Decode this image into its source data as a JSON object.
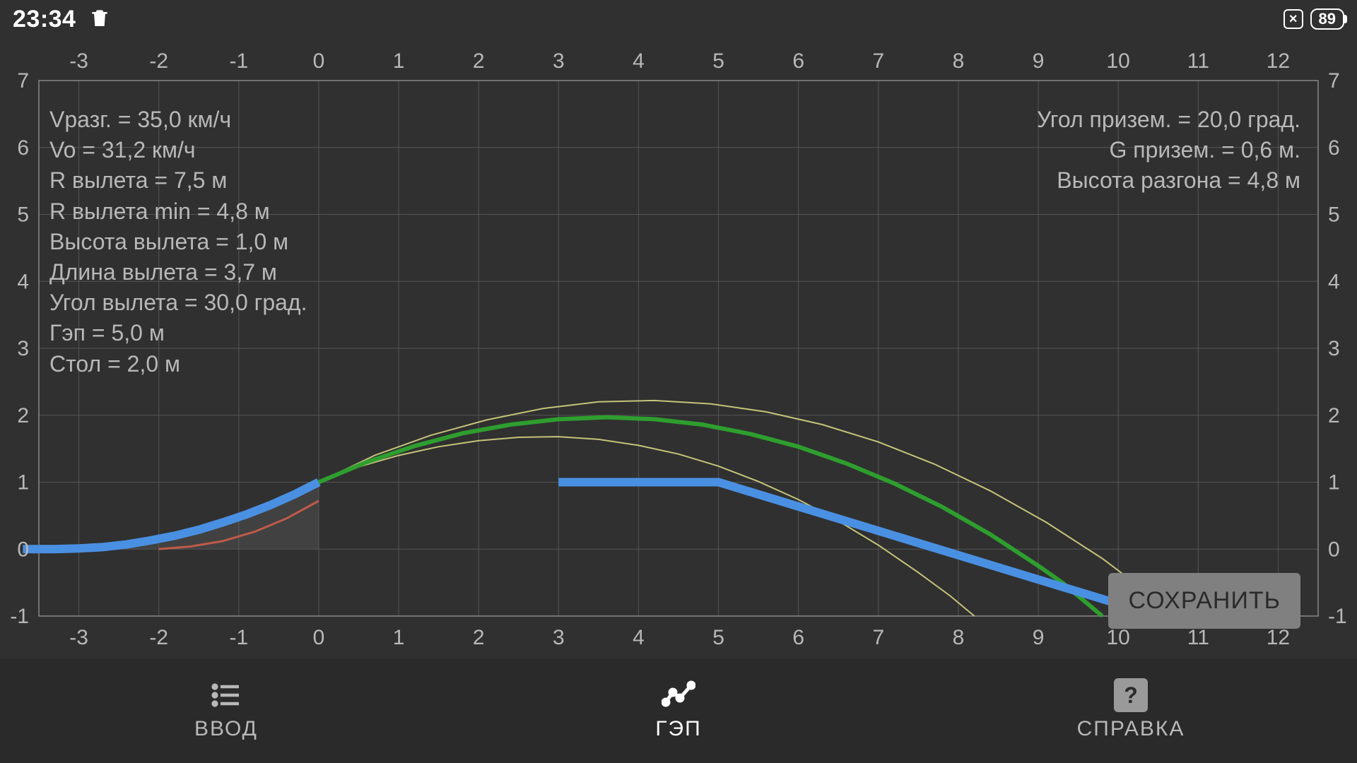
{
  "status": {
    "time": "23:34",
    "battery": "89",
    "close_glyph": "×"
  },
  "chart": {
    "type": "line",
    "background": "#303030",
    "grid_color": "#555555",
    "tick_color": "#b8b8b8",
    "tick_fontsize": 30,
    "x_ticks": [
      -3,
      -2,
      -1,
      0,
      1,
      2,
      3,
      4,
      5,
      6,
      7,
      8,
      9,
      10,
      11,
      12
    ],
    "y_ticks": [
      -1,
      0,
      1,
      2,
      3,
      4,
      5,
      6,
      7
    ],
    "xlim": [
      -3.5,
      12.5
    ],
    "ylim": [
      -1,
      7
    ],
    "colors": {
      "blue": "#4a90e2",
      "green": "#2e9e2e",
      "yellow": "#c4c47a",
      "red": "#c05a4a",
      "ramp_fill": "#606060"
    },
    "line_widths": {
      "blue": 12,
      "green": 6,
      "yellow": 2,
      "red": 3
    },
    "series": {
      "ramp_blue": [
        [
          -3.7,
          0.0
        ],
        [
          -3.3,
          0.0
        ],
        [
          -3.0,
          0.01
        ],
        [
          -2.7,
          0.03
        ],
        [
          -2.4,
          0.07
        ],
        [
          -2.1,
          0.13
        ],
        [
          -1.8,
          0.2
        ],
        [
          -1.5,
          0.29
        ],
        [
          -1.2,
          0.4
        ],
        [
          -0.9,
          0.52
        ],
        [
          -0.6,
          0.66
        ],
        [
          -0.3,
          0.82
        ],
        [
          0.0,
          1.0
        ]
      ],
      "landing_blue": [
        [
          3.0,
          1.0
        ],
        [
          5.0,
          1.0
        ],
        [
          10.5,
          -1.0
        ]
      ],
      "green": [
        [
          0.0,
          1.0
        ],
        [
          0.6,
          1.3
        ],
        [
          1.2,
          1.54
        ],
        [
          1.8,
          1.73
        ],
        [
          2.4,
          1.86
        ],
        [
          3.0,
          1.94
        ],
        [
          3.6,
          1.97
        ],
        [
          4.2,
          1.94
        ],
        [
          4.8,
          1.86
        ],
        [
          5.4,
          1.72
        ],
        [
          6.0,
          1.53
        ],
        [
          6.6,
          1.28
        ],
        [
          7.2,
          0.98
        ],
        [
          7.8,
          0.63
        ],
        [
          8.4,
          0.22
        ],
        [
          9.0,
          -0.25
        ],
        [
          9.3,
          -0.5
        ],
        [
          9.55,
          -0.75
        ],
        [
          9.8,
          -1.0
        ]
      ],
      "yellow_upper": [
        [
          0.0,
          1.0
        ],
        [
          0.7,
          1.4
        ],
        [
          1.4,
          1.7
        ],
        [
          2.1,
          1.93
        ],
        [
          2.8,
          2.1
        ],
        [
          3.5,
          2.2
        ],
        [
          4.2,
          2.22
        ],
        [
          4.9,
          2.17
        ],
        [
          5.6,
          2.05
        ],
        [
          6.3,
          1.86
        ],
        [
          7.0,
          1.6
        ],
        [
          7.7,
          1.27
        ],
        [
          8.4,
          0.87
        ],
        [
          9.1,
          0.4
        ],
        [
          9.8,
          -0.14
        ],
        [
          10.2,
          -0.5
        ],
        [
          10.55,
          -0.8
        ],
        [
          10.75,
          -1.0
        ]
      ],
      "yellow_lower": [
        [
          0.0,
          1.0
        ],
        [
          0.5,
          1.23
        ],
        [
          1.0,
          1.4
        ],
        [
          1.5,
          1.53
        ],
        [
          2.0,
          1.62
        ],
        [
          2.5,
          1.67
        ],
        [
          3.0,
          1.68
        ],
        [
          3.5,
          1.64
        ],
        [
          4.0,
          1.55
        ],
        [
          4.5,
          1.42
        ],
        [
          5.0,
          1.24
        ],
        [
          5.5,
          1.01
        ],
        [
          6.0,
          0.74
        ],
        [
          6.5,
          0.42
        ],
        [
          7.0,
          0.06
        ],
        [
          7.5,
          -0.35
        ],
        [
          7.9,
          -0.7
        ],
        [
          8.2,
          -1.0
        ]
      ],
      "red": [
        [
          -2.0,
          0.0
        ],
        [
          -1.6,
          0.04
        ],
        [
          -1.2,
          0.12
        ],
        [
          -0.8,
          0.26
        ],
        [
          -0.4,
          0.46
        ],
        [
          0.0,
          0.72
        ]
      ],
      "ramp_fill_poly": [
        [
          -3.7,
          0.0
        ],
        [
          -3.0,
          0.01
        ],
        [
          -2.4,
          0.07
        ],
        [
          -1.8,
          0.2
        ],
        [
          -1.2,
          0.4
        ],
        [
          -0.6,
          0.66
        ],
        [
          0.0,
          1.0
        ],
        [
          0.0,
          0.0
        ]
      ]
    }
  },
  "params_left": [
    "Vразг. = 35,0 км/ч",
    "Vo = 31,2 км/ч",
    "R вылета = 7,5 м",
    "R вылета min = 4,8 м",
    "Высота вылета = 1,0 м",
    "Длина вылета = 3,7 м",
    "Угол вылета = 30,0 град.",
    "Гэп = 5,0 м",
    "Стол = 2,0 м"
  ],
  "params_right": [
    "Угол призем. = 20,0 град.",
    "G призем. = 0,6 м.",
    "Высота разгона = 4,8 м"
  ],
  "buttons": {
    "save": "СОХРАНИТЬ"
  },
  "nav": {
    "input": "ВВОД",
    "gap": "ГЭП",
    "help": "СПРАВКА"
  }
}
